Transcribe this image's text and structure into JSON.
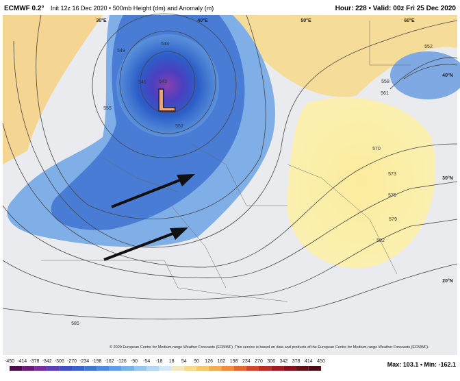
{
  "header": {
    "model": "ECMWF 0.2°",
    "description": "Init 12z 16 Dec 2020 • 500mb Height (dm) and Anomaly (m)",
    "run_info": "Hour: 228 • Valid: 00z Fri 25 Dec 2020"
  },
  "map": {
    "low_label": "L",
    "grid_labels": [
      "30°E",
      "40°E",
      "50°E",
      "60°E",
      "40°N",
      "30°N",
      "20°N"
    ],
    "contour_labels": [
      "543",
      "543",
      "546",
      "549",
      "552",
      "555",
      "558",
      "561",
      "570",
      "573",
      "576",
      "579",
      "582",
      "585",
      "552"
    ],
    "copyright": "© 2020 European Centre for Medium-range Weather Forecasts (ECMWF). This service is based on data and products of the European Centre for Medium-range Weather Forecasts (ECMWF)."
  },
  "colorbar": {
    "ticks": [
      -450,
      -414,
      -378,
      -342,
      -306,
      -270,
      -234,
      -198,
      -162,
      -126,
      -90,
      -54,
      -18,
      18,
      54,
      90,
      126,
      162,
      198,
      234,
      270,
      306,
      342,
      378,
      414,
      450
    ]
  },
  "footer": {
    "stats": "Max: 103.1 • Min: -162.1"
  }
}
